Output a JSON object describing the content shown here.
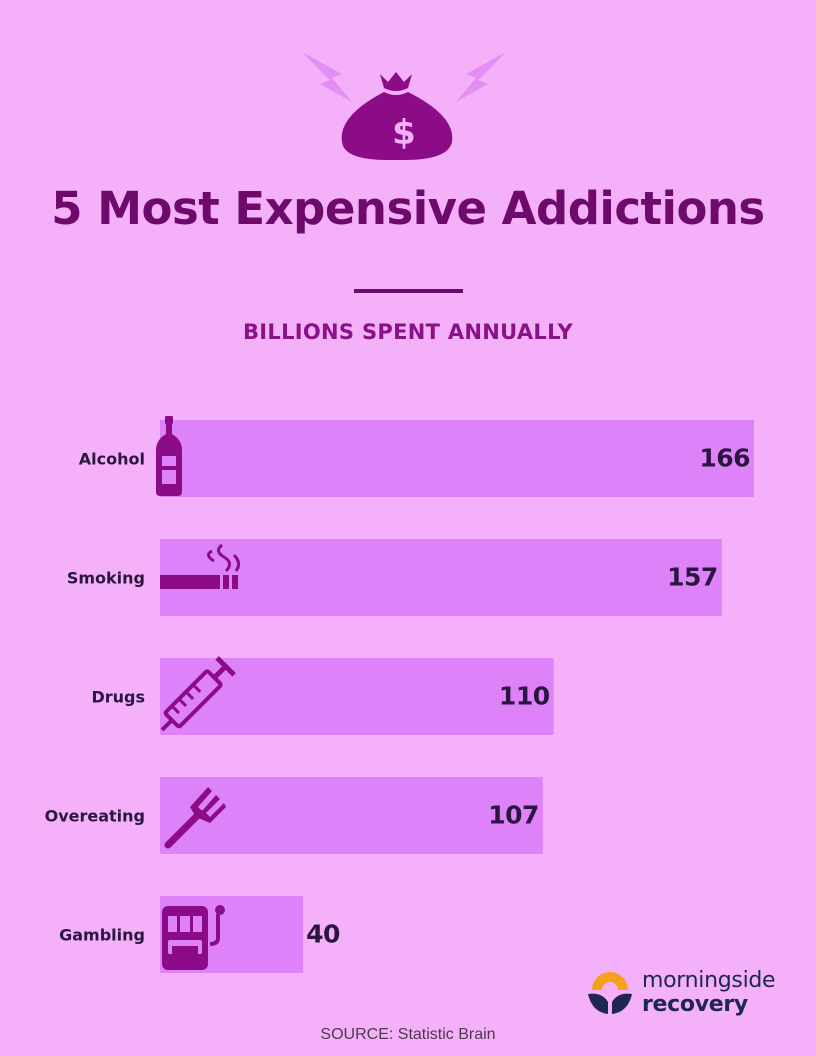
{
  "header": {
    "title": "5 Most Expensive Addictions",
    "subtitle": "BILLIONS SPENT ANNUALLY",
    "icon": "money-bag-icon"
  },
  "chart_data": {
    "type": "bar",
    "orientation": "horizontal",
    "categories": [
      "Alcohol",
      "Smoking",
      "Drugs",
      "Overeating",
      "Gambling"
    ],
    "values": [
      166,
      157,
      110,
      107,
      40
    ],
    "icons": [
      "bottle-icon",
      "cigarette-icon",
      "syringe-icon",
      "fork-icon",
      "slot-machine-icon"
    ],
    "title": "5 Most Expensive Addictions",
    "subtitle": "BILLIONS SPENT ANNUALLY",
    "unit": "billions",
    "grid": false,
    "legend": "none"
  },
  "colors": {
    "background": "#f5b0fa",
    "bar": "#de82fa",
    "title": "#6e0a6b",
    "accent": "#8c0c88",
    "value_text": "#2a1640",
    "logo_orange": "#f4a11c",
    "logo_navy": "#1f2750"
  },
  "footer": {
    "logo_line1": "morningside",
    "logo_line2": "recovery",
    "source": "SOURCE: Statistic Brain"
  }
}
